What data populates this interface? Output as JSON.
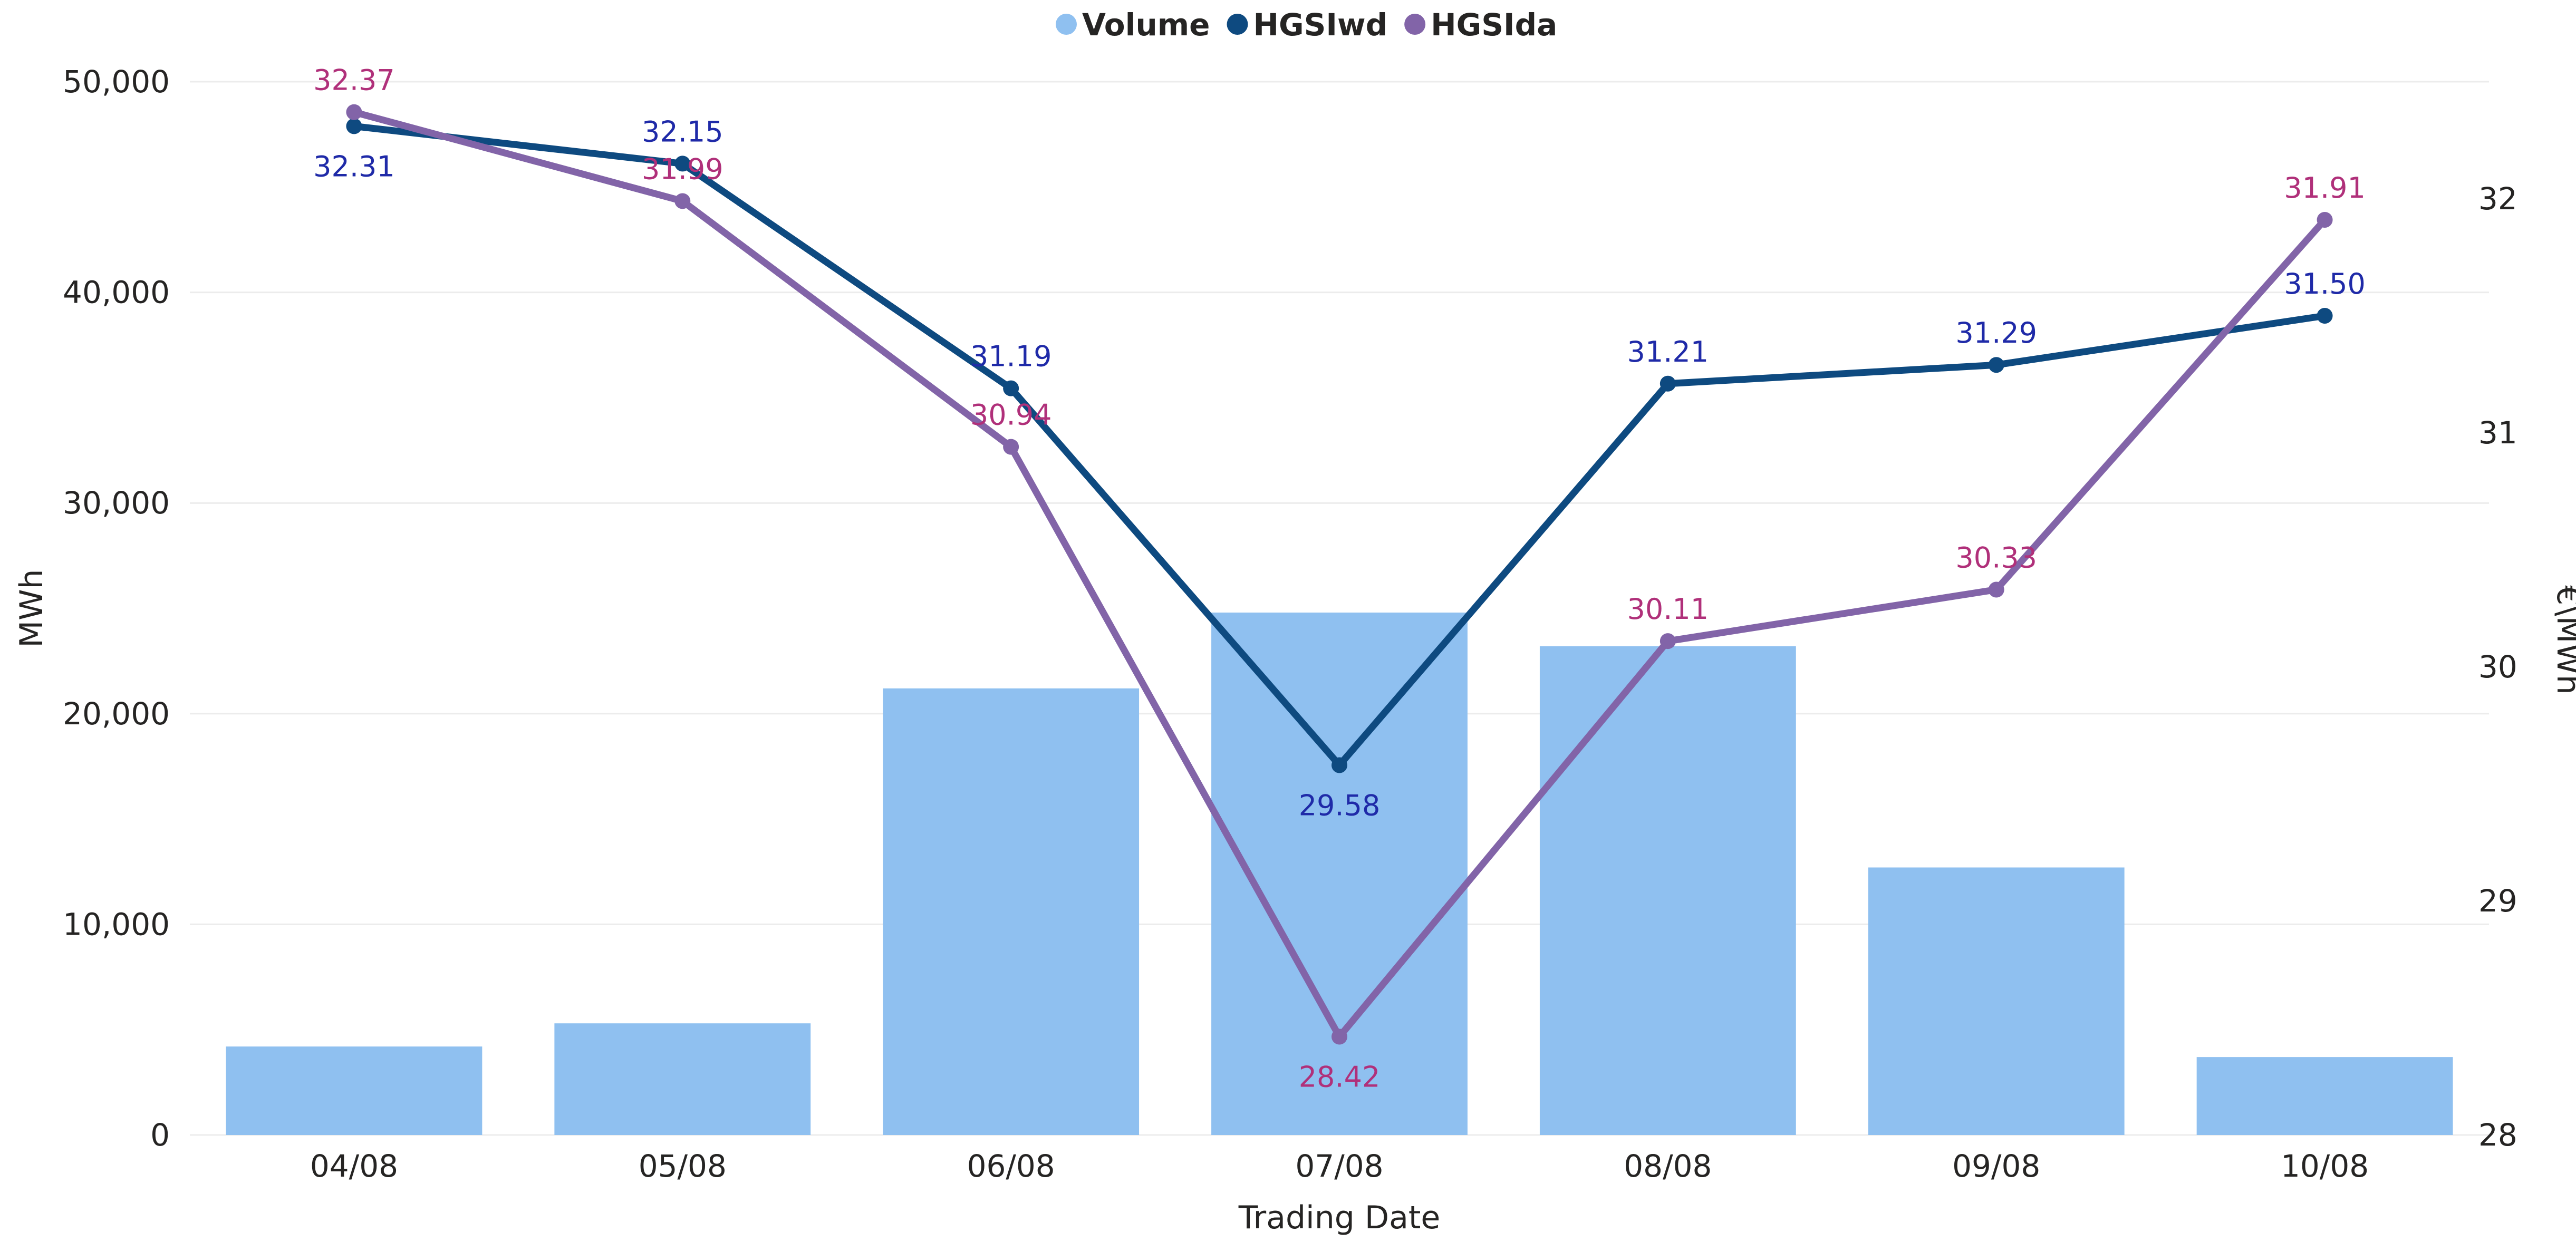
{
  "chart_data": {
    "type": "bar",
    "categories": [
      "04/08",
      "05/08",
      "06/08",
      "07/08",
      "08/08",
      "09/08",
      "10/08"
    ],
    "xlabel": "Trading Date",
    "ylabel_left": "MWh",
    "ylabel_right": "€\\MWh",
    "ylim_left": [
      0,
      50000
    ],
    "ylim_right": [
      28,
      32.5
    ],
    "yticks_left": [
      0,
      10000,
      20000,
      30000,
      40000,
      50000
    ],
    "ytick_labels_left": [
      "0",
      "10,000",
      "20,000",
      "30,000",
      "40,000",
      "50,000"
    ],
    "yticks_right": [
      28,
      29,
      30,
      31,
      32
    ],
    "ytick_labels_right": [
      "28",
      "29",
      "30",
      "31",
      "32"
    ],
    "grid": true,
    "legend_position": "top-center",
    "series": [
      {
        "name": "Volume",
        "kind": "bar",
        "axis": "left",
        "color": "#8FC0F0",
        "values": [
          4200,
          5300,
          21200,
          24800,
          23200,
          12700,
          3700
        ]
      },
      {
        "name": "HGSIwd",
        "kind": "line",
        "axis": "right",
        "color": "#0E4A80",
        "label_color": "#1F2AA8",
        "values": [
          32.31,
          32.15,
          31.19,
          29.58,
          31.21,
          31.29,
          31.5
        ],
        "value_labels": [
          "32.31",
          "32.15",
          "31.19",
          "29.58",
          "31.21",
          "31.29",
          "31.50"
        ]
      },
      {
        "name": "HGSIda",
        "kind": "line",
        "axis": "right",
        "color": "#8264A8",
        "label_color": "#B0307A",
        "values": [
          32.37,
          31.99,
          30.94,
          28.42,
          30.11,
          30.33,
          31.91
        ],
        "value_labels": [
          "32.37",
          "31.99",
          "30.94",
          "28.42",
          "30.11",
          "30.33",
          "31.91"
        ]
      }
    ]
  }
}
